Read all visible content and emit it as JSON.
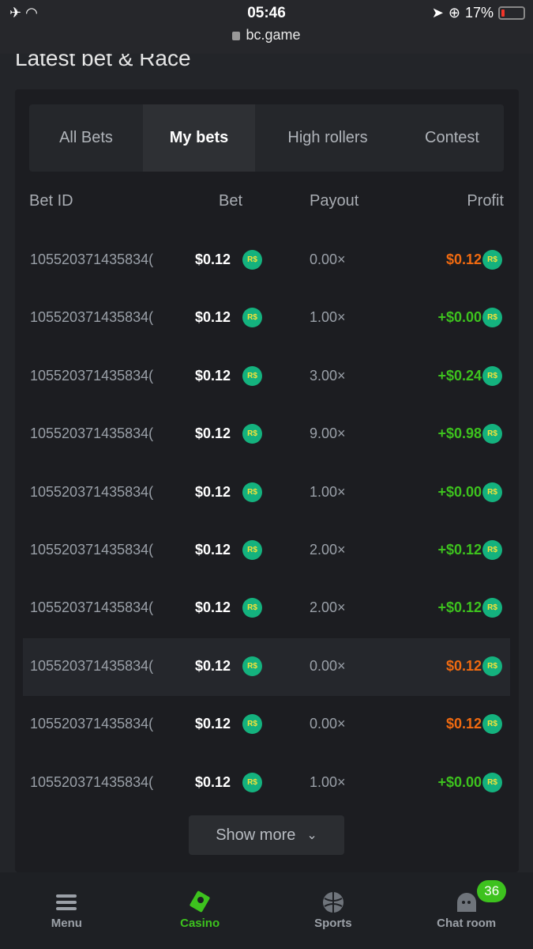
{
  "status_bar": {
    "time": "05:46",
    "url": "bc.game",
    "battery": "17%",
    "battery_level": 0.17
  },
  "section_title": "Latest bet & Race",
  "tabs": [
    {
      "label": "All Bets"
    },
    {
      "label": "My bets",
      "active": true
    },
    {
      "label": "High rollers"
    },
    {
      "label": "Contest"
    }
  ],
  "columns": {
    "bet_id": "Bet ID",
    "bet": "Bet",
    "payout": "Payout",
    "profit": "Profit"
  },
  "currency": "R$",
  "colors": {
    "loss": "#f06a10",
    "win": "#3dc21e",
    "coin": "#14b27e",
    "accent": "#3dc21e"
  },
  "rows": [
    {
      "id": "105520371435834(",
      "bet": "$0.12",
      "payout": "0.00×",
      "profit": "$0.12",
      "win": false
    },
    {
      "id": "105520371435834(",
      "bet": "$0.12",
      "payout": "1.00×",
      "profit": "+$0.00",
      "win": true
    },
    {
      "id": "105520371435834(",
      "bet": "$0.12",
      "payout": "3.00×",
      "profit": "+$0.24",
      "win": true
    },
    {
      "id": "105520371435834(",
      "bet": "$0.12",
      "payout": "9.00×",
      "profit": "+$0.98",
      "win": true
    },
    {
      "id": "105520371435834(",
      "bet": "$0.12",
      "payout": "1.00×",
      "profit": "+$0.00",
      "win": true
    },
    {
      "id": "105520371435834(",
      "bet": "$0.12",
      "payout": "2.00×",
      "profit": "+$0.12",
      "win": true
    },
    {
      "id": "105520371435834(",
      "bet": "$0.12",
      "payout": "2.00×",
      "profit": "+$0.12",
      "win": true
    },
    {
      "id": "105520371435834(",
      "bet": "$0.12",
      "payout": "0.00×",
      "profit": "$0.12",
      "win": false
    },
    {
      "id": "105520371435834(",
      "bet": "$0.12",
      "payout": "0.00×",
      "profit": "$0.12",
      "win": false
    },
    {
      "id": "105520371435834(",
      "bet": "$0.12",
      "payout": "1.00×",
      "profit": "+$0.00",
      "win": true
    }
  ],
  "show_more": "Show more",
  "nav": [
    {
      "label": "Menu",
      "icon": "menu-icon"
    },
    {
      "label": "Casino",
      "icon": "casino-cards-icon",
      "active": true
    },
    {
      "label": "Sports",
      "icon": "basketball-icon"
    },
    {
      "label": "Chat room",
      "icon": "chat-icon",
      "badge": "36"
    }
  ]
}
